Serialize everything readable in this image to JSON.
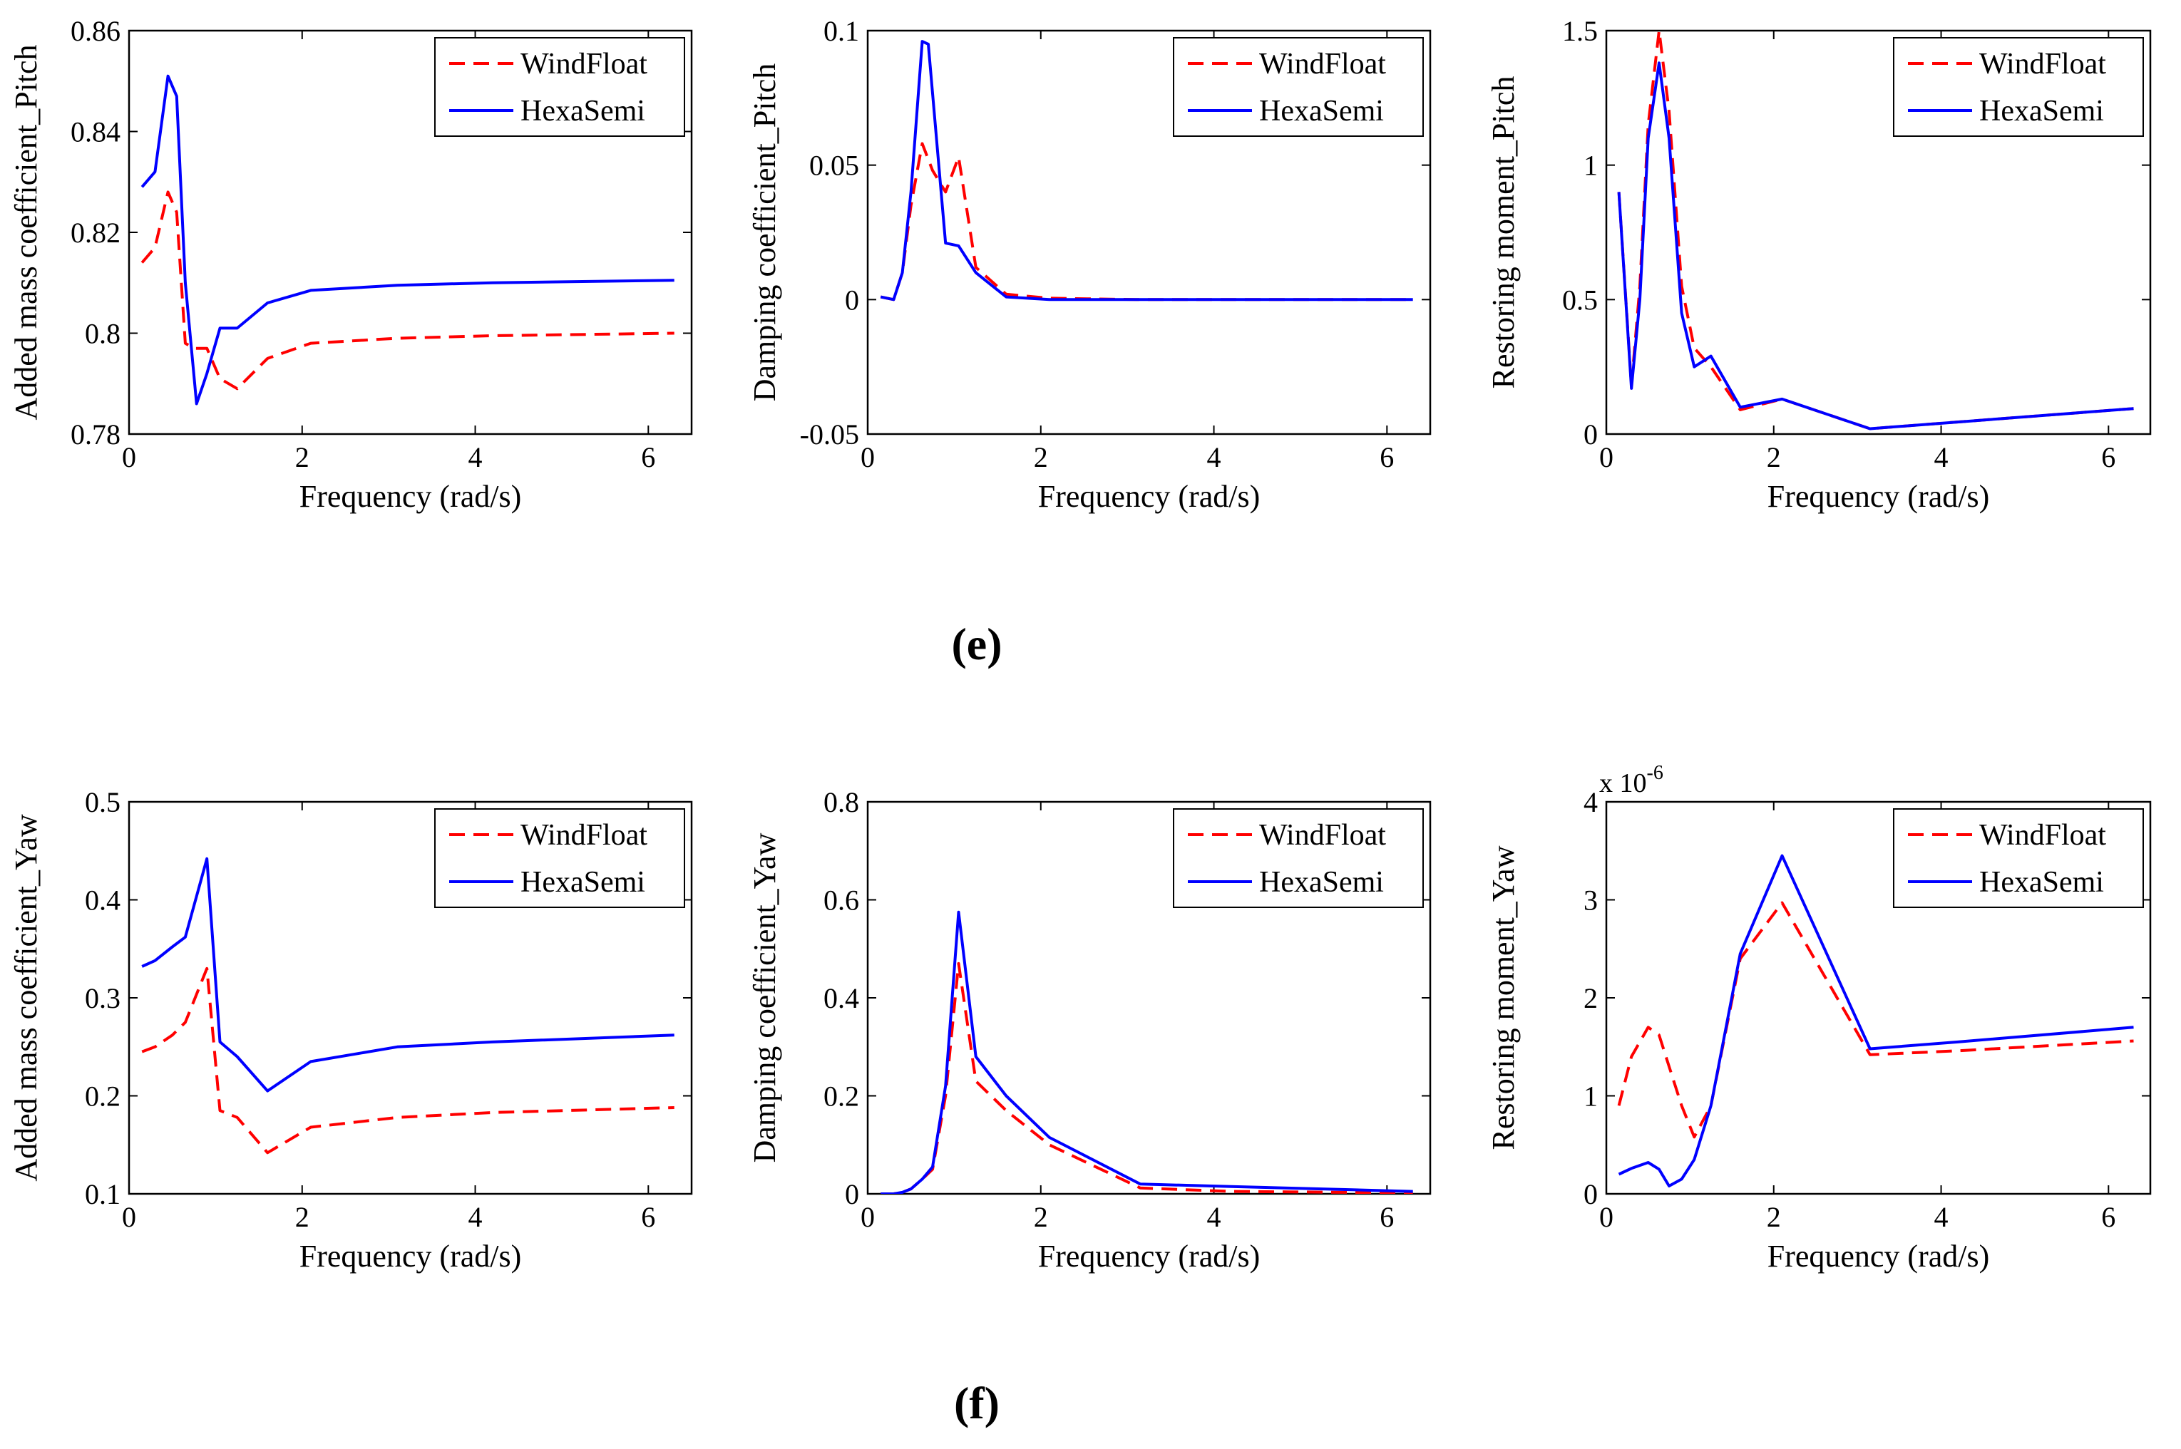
{
  "figure": {
    "panel_labels": [
      {
        "text": "(e)",
        "row": 0
      },
      {
        "text": "(f)",
        "row": 1
      }
    ],
    "colors": {
      "WindFloat": "#ff0000",
      "HexaSemi": "#0000ff",
      "axes": "#000000",
      "background": "#ffffff"
    }
  },
  "chart_data": [
    {
      "type": "line",
      "xlabel": "Frequency (rad/s)",
      "ylabel": "Added mass coefficient_Pitch",
      "xlim": [
        0,
        6.5
      ],
      "ylim": [
        0.78,
        0.86
      ],
      "xticks": [
        0,
        2,
        4,
        6
      ],
      "yticks": [
        0.78,
        0.8,
        0.82,
        0.84,
        0.86
      ],
      "ytick_labels": [
        "0.78",
        "0.8",
        "0.82",
        "0.84",
        "0.86"
      ],
      "legend": "top-right",
      "grid": false,
      "series": [
        {
          "name": "WindFloat",
          "style": "dashed",
          "color": "#ff0000",
          "x": [
            0.15,
            0.3,
            0.45,
            0.55,
            0.65,
            0.75,
            0.9,
            1.05,
            1.25,
            1.6,
            2.1,
            3.1,
            4.2,
            6.3
          ],
          "y": [
            0.814,
            0.817,
            0.828,
            0.824,
            0.798,
            0.797,
            0.797,
            0.791,
            0.789,
            0.795,
            0.798,
            0.799,
            0.7995,
            0.8
          ]
        },
        {
          "name": "HexaSemi",
          "style": "solid",
          "color": "#0000ff",
          "x": [
            0.15,
            0.3,
            0.45,
            0.55,
            0.65,
            0.78,
            0.9,
            1.05,
            1.25,
            1.6,
            2.1,
            3.1,
            4.2,
            6.3
          ],
          "y": [
            0.829,
            0.832,
            0.851,
            0.847,
            0.81,
            0.786,
            0.792,
            0.801,
            0.801,
            0.806,
            0.8085,
            0.8095,
            0.81,
            0.8105
          ]
        }
      ]
    },
    {
      "type": "line",
      "xlabel": "Frequency (rad/s)",
      "ylabel": "Damping coefficient_Pitch",
      "xlim": [
        0,
        6.5
      ],
      "ylim": [
        -0.05,
        0.1
      ],
      "xticks": [
        0,
        2,
        4,
        6
      ],
      "yticks": [
        -0.05,
        0,
        0.05,
        0.1
      ],
      "ytick_labels": [
        "-0.05",
        "0",
        "0.05",
        "0.1"
      ],
      "legend": "top-right",
      "grid": false,
      "series": [
        {
          "name": "WindFloat",
          "style": "dashed",
          "color": "#ff0000",
          "x": [
            0.15,
            0.3,
            0.4,
            0.5,
            0.63,
            0.75,
            0.9,
            1.05,
            1.25,
            1.6,
            2.1,
            3.1,
            4.2,
            6.3
          ],
          "y": [
            0.001,
            0.0,
            0.01,
            0.035,
            0.058,
            0.048,
            0.04,
            0.053,
            0.012,
            0.002,
            0.0005,
            0.0,
            0.0,
            0.0
          ]
        },
        {
          "name": "HexaSemi",
          "style": "solid",
          "color": "#0000ff",
          "x": [
            0.15,
            0.3,
            0.4,
            0.5,
            0.63,
            0.7,
            0.9,
            1.05,
            1.25,
            1.6,
            2.1,
            3.1,
            4.2,
            6.3
          ],
          "y": [
            0.001,
            0.0,
            0.01,
            0.04,
            0.096,
            0.095,
            0.021,
            0.02,
            0.01,
            0.001,
            0.0,
            0.0,
            0.0,
            0.0
          ]
        }
      ]
    },
    {
      "type": "line",
      "xlabel": "Frequency (rad/s)",
      "ylabel": "Restoring moment_Pitch",
      "xlim": [
        0,
        6.5
      ],
      "ylim": [
        0,
        1.5
      ],
      "xticks": [
        0,
        2,
        4,
        6
      ],
      "yticks": [
        0,
        0.5,
        1,
        1.5
      ],
      "ytick_labels": [
        "0",
        "0.5",
        "1",
        "1.5"
      ],
      "legend": "top-right",
      "grid": false,
      "series": [
        {
          "name": "WindFloat",
          "style": "dashed",
          "color": "#ff0000",
          "x": [
            0.15,
            0.3,
            0.4,
            0.5,
            0.63,
            0.75,
            0.9,
            1.05,
            1.25,
            1.6,
            2.1,
            3.15,
            6.3
          ],
          "y": [
            0.9,
            0.18,
            0.55,
            1.15,
            1.5,
            1.2,
            0.55,
            0.32,
            0.25,
            0.09,
            0.13,
            0.02,
            0.095
          ]
        },
        {
          "name": "HexaSemi",
          "style": "solid",
          "color": "#0000ff",
          "x": [
            0.15,
            0.3,
            0.4,
            0.5,
            0.63,
            0.75,
            0.9,
            1.05,
            1.25,
            1.6,
            2.1,
            3.15,
            6.3
          ],
          "y": [
            0.9,
            0.17,
            0.5,
            1.1,
            1.38,
            1.1,
            0.45,
            0.25,
            0.29,
            0.1,
            0.13,
            0.02,
            0.095
          ]
        }
      ]
    },
    {
      "type": "line",
      "xlabel": "Frequency (rad/s)",
      "ylabel": "Added mass coefficient_Yaw",
      "xlim": [
        0,
        6.5
      ],
      "ylim": [
        0.1,
        0.5
      ],
      "xticks": [
        0,
        2,
        4,
        6
      ],
      "yticks": [
        0.1,
        0.2,
        0.3,
        0.4,
        0.5
      ],
      "ytick_labels": [
        "0.1",
        "0.2",
        "0.3",
        "0.4",
        "0.5"
      ],
      "legend": "top-right",
      "grid": false,
      "series": [
        {
          "name": "WindFloat",
          "style": "dashed",
          "color": "#ff0000",
          "x": [
            0.15,
            0.3,
            0.5,
            0.65,
            0.9,
            1.05,
            1.25,
            1.6,
            2.1,
            3.1,
            4.2,
            6.3
          ],
          "y": [
            0.245,
            0.25,
            0.262,
            0.275,
            0.33,
            0.185,
            0.178,
            0.142,
            0.168,
            0.178,
            0.183,
            0.188
          ]
        },
        {
          "name": "HexaSemi",
          "style": "solid",
          "color": "#0000ff",
          "x": [
            0.15,
            0.3,
            0.5,
            0.65,
            0.9,
            1.05,
            1.25,
            1.6,
            2.1,
            3.1,
            4.2,
            6.3
          ],
          "y": [
            0.332,
            0.338,
            0.352,
            0.362,
            0.442,
            0.255,
            0.24,
            0.205,
            0.235,
            0.25,
            0.255,
            0.262
          ]
        }
      ]
    },
    {
      "type": "line",
      "xlabel": "Frequency (rad/s)",
      "ylabel": "Damping coefficient_Yaw",
      "xlim": [
        0,
        6.5
      ],
      "ylim": [
        0,
        0.8
      ],
      "xticks": [
        0,
        2,
        4,
        6
      ],
      "yticks": [
        0,
        0.2,
        0.4,
        0.6,
        0.8
      ],
      "ytick_labels": [
        "0",
        "0.2",
        "0.4",
        "0.6",
        "0.8"
      ],
      "legend": "top-right",
      "grid": false,
      "series": [
        {
          "name": "WindFloat",
          "style": "dashed",
          "color": "#ff0000",
          "x": [
            0.15,
            0.3,
            0.4,
            0.5,
            0.63,
            0.75,
            0.9,
            1.05,
            1.25,
            1.6,
            2.1,
            3.15,
            4.2,
            6.3
          ],
          "y": [
            0.0,
            0.0,
            0.003,
            0.01,
            0.03,
            0.05,
            0.2,
            0.47,
            0.23,
            0.17,
            0.1,
            0.012,
            0.005,
            0.002
          ]
        },
        {
          "name": "HexaSemi",
          "style": "solid",
          "color": "#0000ff",
          "x": [
            0.15,
            0.3,
            0.4,
            0.5,
            0.63,
            0.75,
            0.9,
            1.05,
            1.25,
            1.6,
            2.1,
            3.15,
            4.2,
            6.3
          ],
          "y": [
            0.0,
            0.0,
            0.003,
            0.01,
            0.03,
            0.055,
            0.22,
            0.575,
            0.28,
            0.2,
            0.115,
            0.02,
            0.015,
            0.005
          ]
        }
      ]
    },
    {
      "type": "line",
      "xlabel": "Frequency (rad/s)",
      "ylabel": "Restoring moment_Yaw",
      "multiplier_label": "x 10",
      "multiplier_exponent": "-6",
      "xlim": [
        0,
        6.5
      ],
      "ylim": [
        0,
        4
      ],
      "xticks": [
        0,
        2,
        4,
        6
      ],
      "yticks": [
        0,
        1,
        2,
        3,
        4
      ],
      "ytick_labels": [
        "0",
        "1",
        "2",
        "3",
        "4"
      ],
      "legend": "top-right",
      "grid": false,
      "series": [
        {
          "name": "WindFloat",
          "style": "dashed",
          "color": "#ff0000",
          "x": [
            0.15,
            0.3,
            0.5,
            0.63,
            0.75,
            0.9,
            1.05,
            1.25,
            1.6,
            2.1,
            3.15,
            4.2,
            6.3
          ],
          "y": [
            0.9,
            1.4,
            1.7,
            1.62,
            1.3,
            0.9,
            0.58,
            0.9,
            2.4,
            2.97,
            1.42,
            1.46,
            1.56
          ]
        },
        {
          "name": "HexaSemi",
          "style": "solid",
          "color": "#0000ff",
          "x": [
            0.15,
            0.3,
            0.5,
            0.63,
            0.75,
            0.9,
            1.05,
            1.25,
            1.6,
            2.1,
            3.15,
            4.2,
            6.3
          ],
          "y": [
            0.2,
            0.26,
            0.32,
            0.25,
            0.08,
            0.15,
            0.35,
            0.9,
            2.45,
            3.45,
            1.48,
            1.55,
            1.7
          ]
        }
      ]
    }
  ]
}
